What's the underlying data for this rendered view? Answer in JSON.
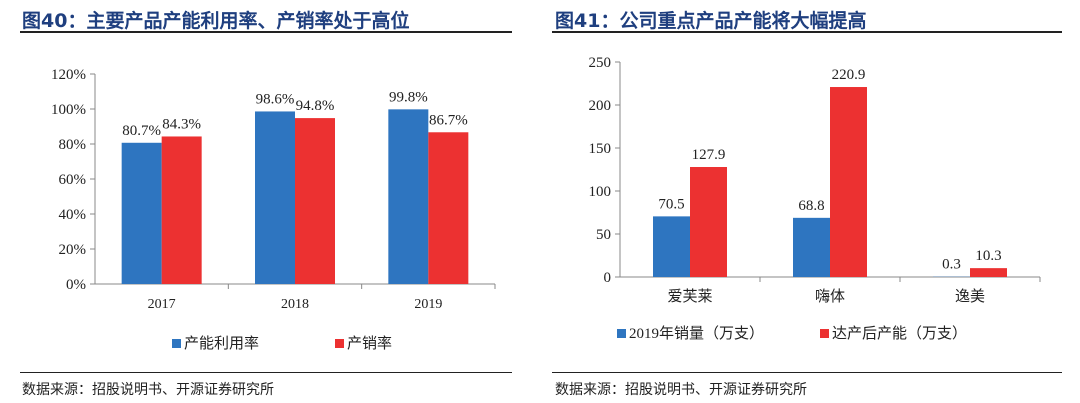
{
  "colors": {
    "blue": "#2e75c0",
    "red": "#ec3131",
    "title": "#1f3f7f"
  },
  "chart_data": [
    {
      "type": "bar",
      "title": "图40：主要产品产能利用率、产销率处于高位",
      "categories": [
        "2017",
        "2018",
        "2019"
      ],
      "series": [
        {
          "name": "产能利用率",
          "values": [
            80.7,
            98.6,
            99.8
          ],
          "labels": [
            "80.7%",
            "98.6%",
            "99.8%"
          ],
          "color": "#2e75c0"
        },
        {
          "name": "产销率",
          "values": [
            84.3,
            94.8,
            86.7
          ],
          "labels": [
            "84.3%",
            "94.8%",
            "86.7%"
          ],
          "color": "#ec3131"
        }
      ],
      "ylim": [
        0,
        120
      ],
      "yticks": [
        "0%",
        "20%",
        "40%",
        "60%",
        "80%",
        "100%",
        "120%"
      ],
      "legend": "bottom",
      "grid": false,
      "source": "数据来源：招股说明书、开源证券研究所"
    },
    {
      "type": "bar",
      "title": "图41：公司重点产品产能将大幅提高",
      "categories": [
        "爱芙莱",
        "嗨体",
        "逸美"
      ],
      "series": [
        {
          "name": "2019年销量（万支）",
          "values": [
            70.5,
            68.8,
            0.3
          ],
          "labels": [
            "70.5",
            "68.8",
            "0.3"
          ],
          "color": "#2e75c0"
        },
        {
          "name": "达产后产能（万支）",
          "values": [
            127.9,
            220.9,
            10.3
          ],
          "labels": [
            "127.9",
            "220.9",
            "10.3"
          ],
          "color": "#ec3131"
        }
      ],
      "ylim": [
        0,
        250
      ],
      "yticks": [
        "0",
        "50",
        "100",
        "150",
        "200",
        "250"
      ],
      "legend": "bottom",
      "grid": false,
      "source": "数据来源：招股说明书、开源证券研究所"
    }
  ]
}
